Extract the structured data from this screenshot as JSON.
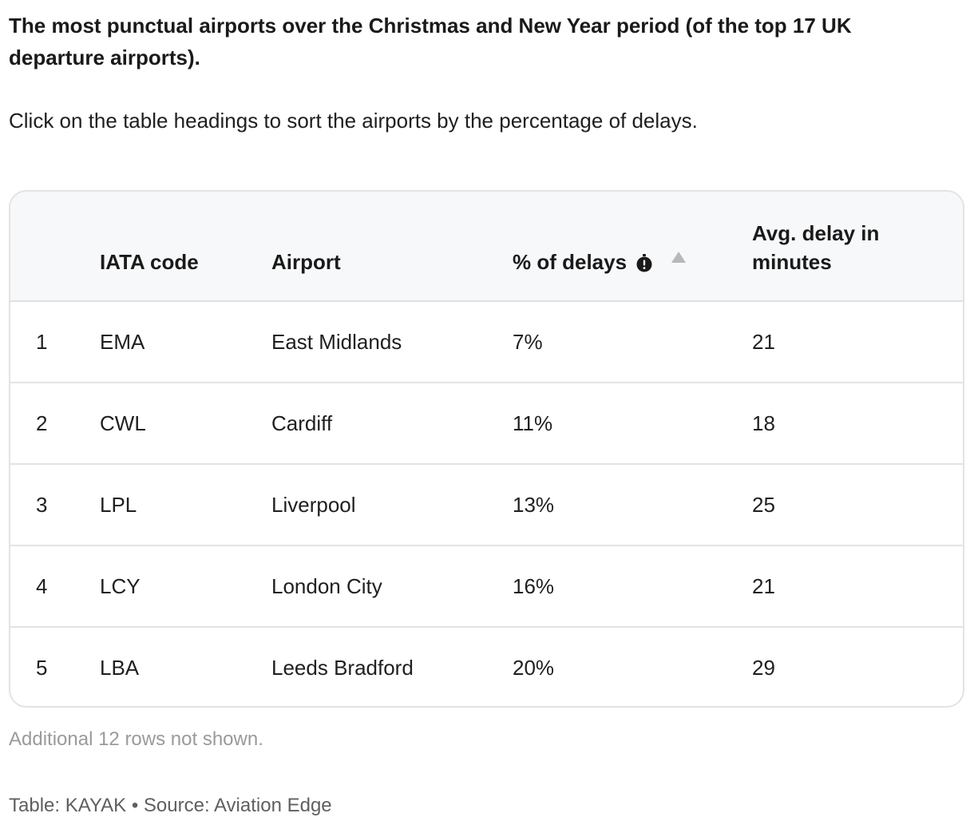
{
  "title": "The most punctual airports over the Christmas and New Year period (of the top 17 UK departure airports).",
  "description": "Click on the table headings to sort the airports by the percentage of delays.",
  "table": {
    "headers": {
      "rank": "",
      "iata": "IATA code",
      "airport": "Airport",
      "delays": "% of delays",
      "avg_delay": "Avg. delay in minutes"
    },
    "sort": {
      "column": "delays",
      "direction": "ascending",
      "indicator_icon": "sort-up-arrow-icon"
    },
    "info_icon": "stopwatch-alert-icon",
    "rows": [
      {
        "rank": "1",
        "iata": "EMA",
        "airport": "East Midlands",
        "delays": "7%",
        "avg_delay": "21"
      },
      {
        "rank": "2",
        "iata": "CWL",
        "airport": "Cardiff",
        "delays": "11%",
        "avg_delay": "18"
      },
      {
        "rank": "3",
        "iata": "LPL",
        "airport": "Liverpool",
        "delays": "13%",
        "avg_delay": "25"
      },
      {
        "rank": "4",
        "iata": "LCY",
        "airport": "London City",
        "delays": "16%",
        "avg_delay": "21"
      },
      {
        "rank": "5",
        "iata": "LBA",
        "airport": "Leeds Bradford",
        "delays": "20%",
        "avg_delay": "29"
      }
    ]
  },
  "note": "Additional 12 rows not shown.",
  "footer": "Table: KAYAK • Source: Aviation Edge",
  "colors": {
    "header_bg": "#f7f8fa",
    "border": "#e3e3e3",
    "text": "#1f1f1f",
    "muted": "#9a9a9a",
    "footer_text": "#5f5f5f",
    "sort_arrow": "#b8b8b8"
  }
}
